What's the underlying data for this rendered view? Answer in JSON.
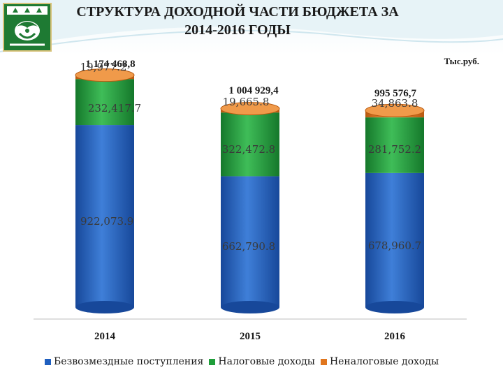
{
  "title_line1": "СТРУКТУРА ДОХОДНОЙ ЧАСТИ БЮДЖЕТА ЗА",
  "title_line2": "2014-2016 ГОДЫ",
  "unit": "Тыс.руб.",
  "colors": {
    "bezvozmezdnye": "#1f5fbf",
    "nalogovye": "#1f9e3a",
    "nenalogovye": "#e0761e"
  },
  "chart_data": {
    "type": "bar",
    "stacked": true,
    "categories": [
      "2014",
      "2015",
      "2016"
    ],
    "totals": [
      "1 174 468,8",
      "1 004 929,4",
      "995 576,7"
    ],
    "series": [
      {
        "name": "Безвозмездные поступления",
        "values": [
          922073.9,
          662790.8,
          678960.7
        ],
        "labels": [
          "922,073.9",
          "662,790.8",
          "678,960.7"
        ]
      },
      {
        "name": "Налоговые доходы",
        "values": [
          232417.7,
          322472.8,
          281752.2
        ],
        "labels": [
          "232,417.7",
          "322,472.8",
          "281,752.2"
        ]
      },
      {
        "name": "Неналоговые доходы",
        "values": [
          19977.2,
          19665.8,
          34863.8
        ],
        "labels": [
          "19,977.2",
          "19,665.8",
          "34,863.8"
        ]
      }
    ],
    "legend_position": "bottom"
  }
}
